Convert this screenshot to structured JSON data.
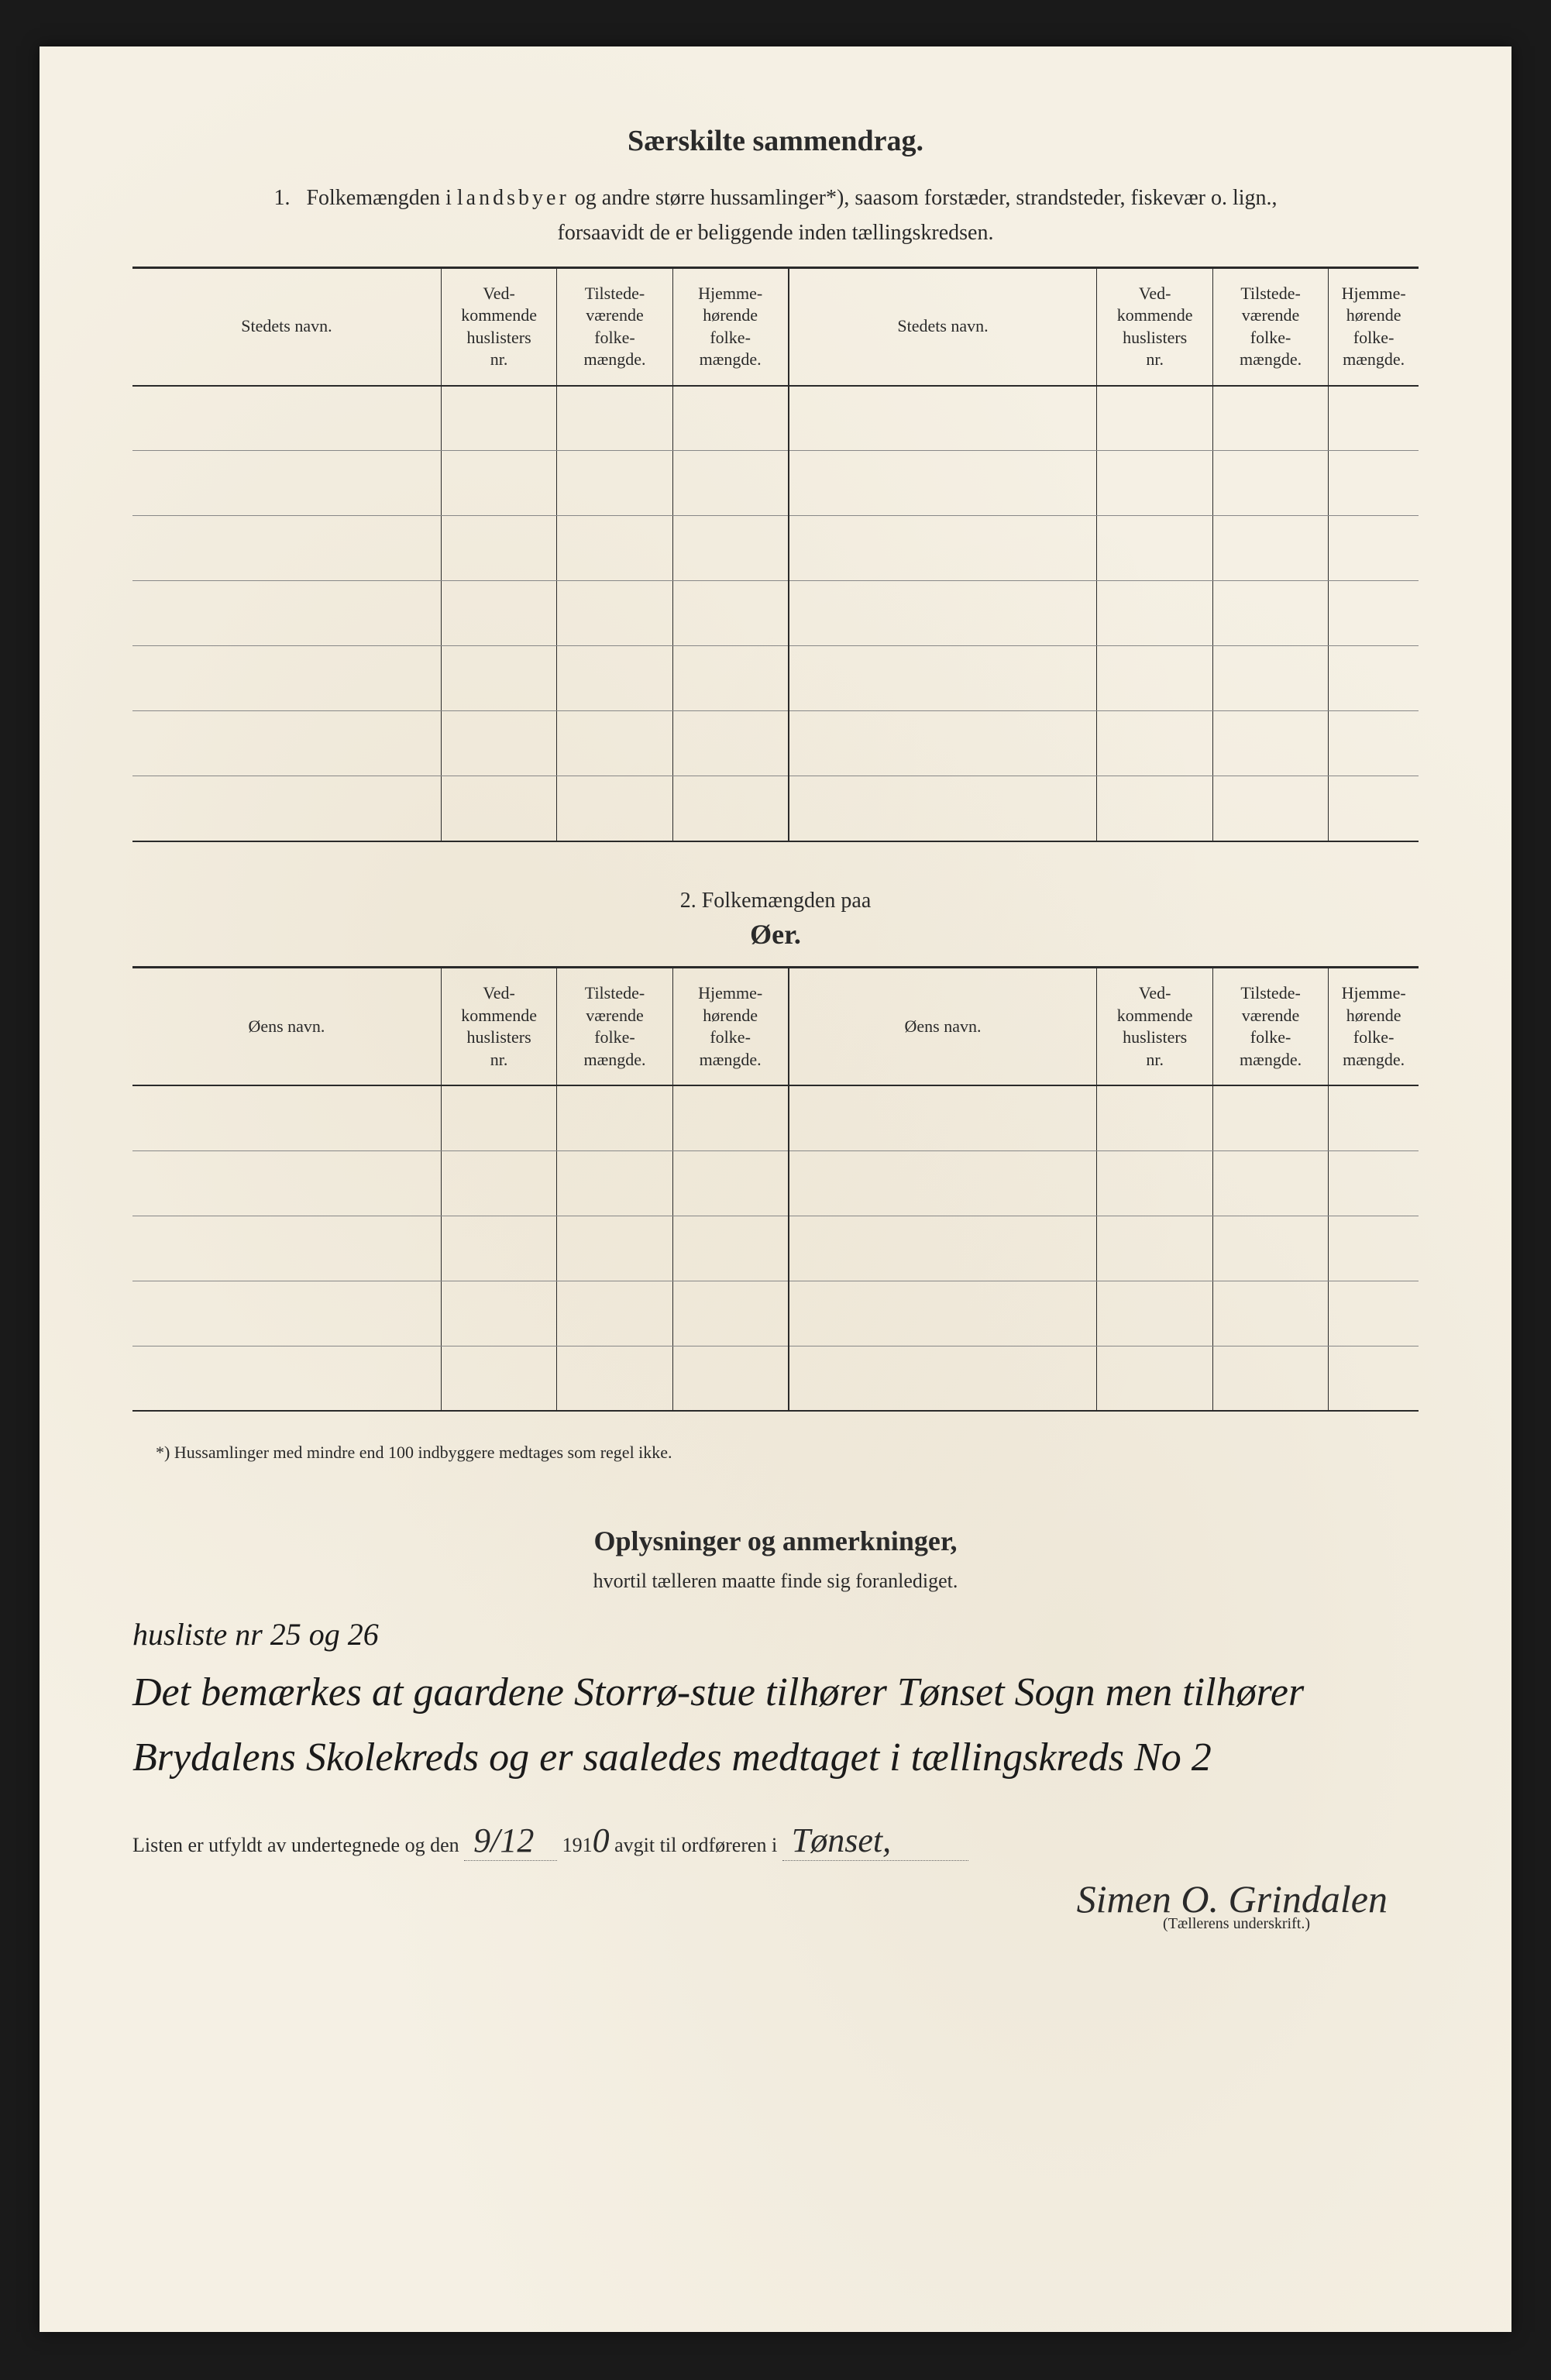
{
  "title_main": "Særskilte sammendrag.",
  "section1": {
    "num": "1.",
    "intro_a": "Folkemængden i ",
    "intro_spaced": "landsbyer",
    "intro_b": " og andre større hussamlinger*), saasom forstæder, strandsteder, fiskevær o. lign.,",
    "intro_c": "forsaavidt de er beliggende inden tællingskredsen."
  },
  "table1": {
    "headers": {
      "name": "Stedets navn.",
      "col1": "Ved-\nkommende\nhuslisters\nnr.",
      "col2": "Tilstede-\nværende\nfolke-\nmængde.",
      "col3": "Hjemme-\nhørende\nfolke-\nmængde.",
      "name2": "Stedets navn.",
      "col4": "Ved-\nkommende\nhuslisters\nnr.",
      "col5": "Tilstede-\nværende\nfolke-\nmængde.",
      "col6": "Hjemme-\nhørende\nfolke-\nmængde."
    },
    "rows": 7
  },
  "section2": {
    "num": "2.    Folkemængden paa",
    "title": "Øer."
  },
  "table2": {
    "headers": {
      "name": "Øens navn.",
      "col1": "Ved-\nkommende\nhuslisters\nnr.",
      "col2": "Tilstede-\nværende\nfolke-\nmængde.",
      "col3": "Hjemme-\nhørende\nfolke-\nmængde.",
      "name2": "Øens navn.",
      "col4": "Ved-\nkommende\nhuslisters\nnr.",
      "col5": "Tilstede-\nværende\nfolke-\nmængde.",
      "col6": "Hjemme-\nhørende\nfolke-\nmængde."
    },
    "rows": 5
  },
  "footnote": "*) Hussamlinger med mindre end 100 indbyggere medtages som regel ikke.",
  "remarks": {
    "title": "Oplysninger og anmerkninger,",
    "sub": "hvortil tælleren maatte finde sig foranlediget."
  },
  "margin_note": "husliste nr 25 og 26",
  "handwritten": "Det bemærkes at gaardene Storrø-stue tilhører Tønset Sogn men tilhører Brydalens Skolekreds og er saaledes medtaget i tællingskreds No 2",
  "signoff": {
    "pre": "Listen er utfyldt av undertegnede og den",
    "date": "9/12",
    "year_pre": "191",
    "year_fill": "0",
    "post": " avgit til ordføreren i",
    "place": "Tønset,"
  },
  "signature": "Simen O. Grindalen",
  "sig_label": "(Tællerens underskrift.)"
}
